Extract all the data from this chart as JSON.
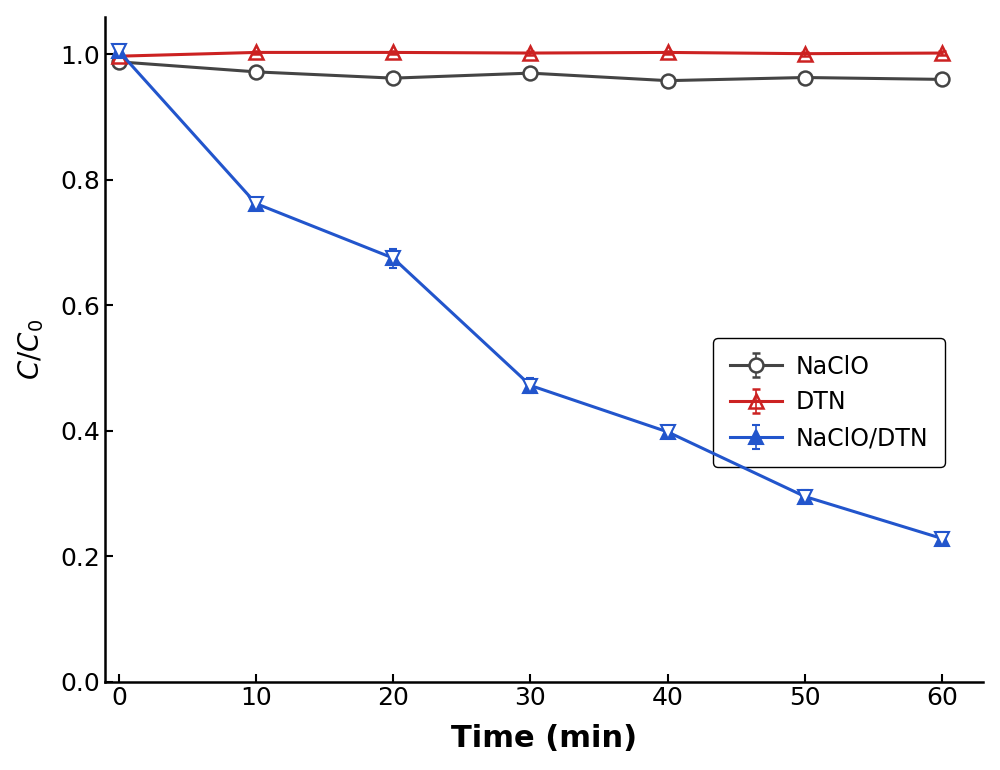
{
  "title": "",
  "xlabel": "Time (min)",
  "ylabel": "C/C₀",
  "xlim": [
    -1,
    63
  ],
  "ylim": [
    0.0,
    1.06
  ],
  "xticks": [
    0,
    10,
    20,
    30,
    40,
    50,
    60
  ],
  "yticks": [
    0.0,
    0.2,
    0.4,
    0.6,
    0.8,
    1.0
  ],
  "naclo": {
    "x": [
      0,
      10,
      20,
      30,
      40,
      50,
      60
    ],
    "y": [
      0.988,
      0.972,
      0.962,
      0.97,
      0.958,
      0.963,
      0.96
    ],
    "yerr": [
      0.004,
      0.006,
      0.005,
      0.005,
      0.006,
      0.006,
      0.006
    ],
    "color": "#444444",
    "label": "NaClO"
  },
  "dtn": {
    "x": [
      0,
      10,
      20,
      30,
      40,
      50,
      60
    ],
    "y": [
      0.997,
      1.003,
      1.003,
      1.002,
      1.003,
      1.001,
      1.002
    ],
    "yerr": [
      0.003,
      0.003,
      0.003,
      0.003,
      0.003,
      0.003,
      0.003
    ],
    "color": "#cc2222",
    "label": "DTN"
  },
  "naclo_dtn": {
    "x": [
      0,
      10,
      20,
      30,
      40,
      50,
      60
    ],
    "y": [
      1.005,
      0.762,
      0.675,
      0.472,
      0.398,
      0.295,
      0.228
    ],
    "yerr": [
      0.004,
      0.008,
      0.015,
      0.012,
      0.01,
      0.01,
      0.01
    ],
    "color": "#2255cc",
    "label": "NaClO/DTN"
  },
  "xlabel_fontsize": 22,
  "ylabel_fontsize": 20,
  "tick_fontsize": 18,
  "legend_fontsize": 17,
  "linewidth": 2.2,
  "markersize": 10,
  "background_color": "#ffffff"
}
